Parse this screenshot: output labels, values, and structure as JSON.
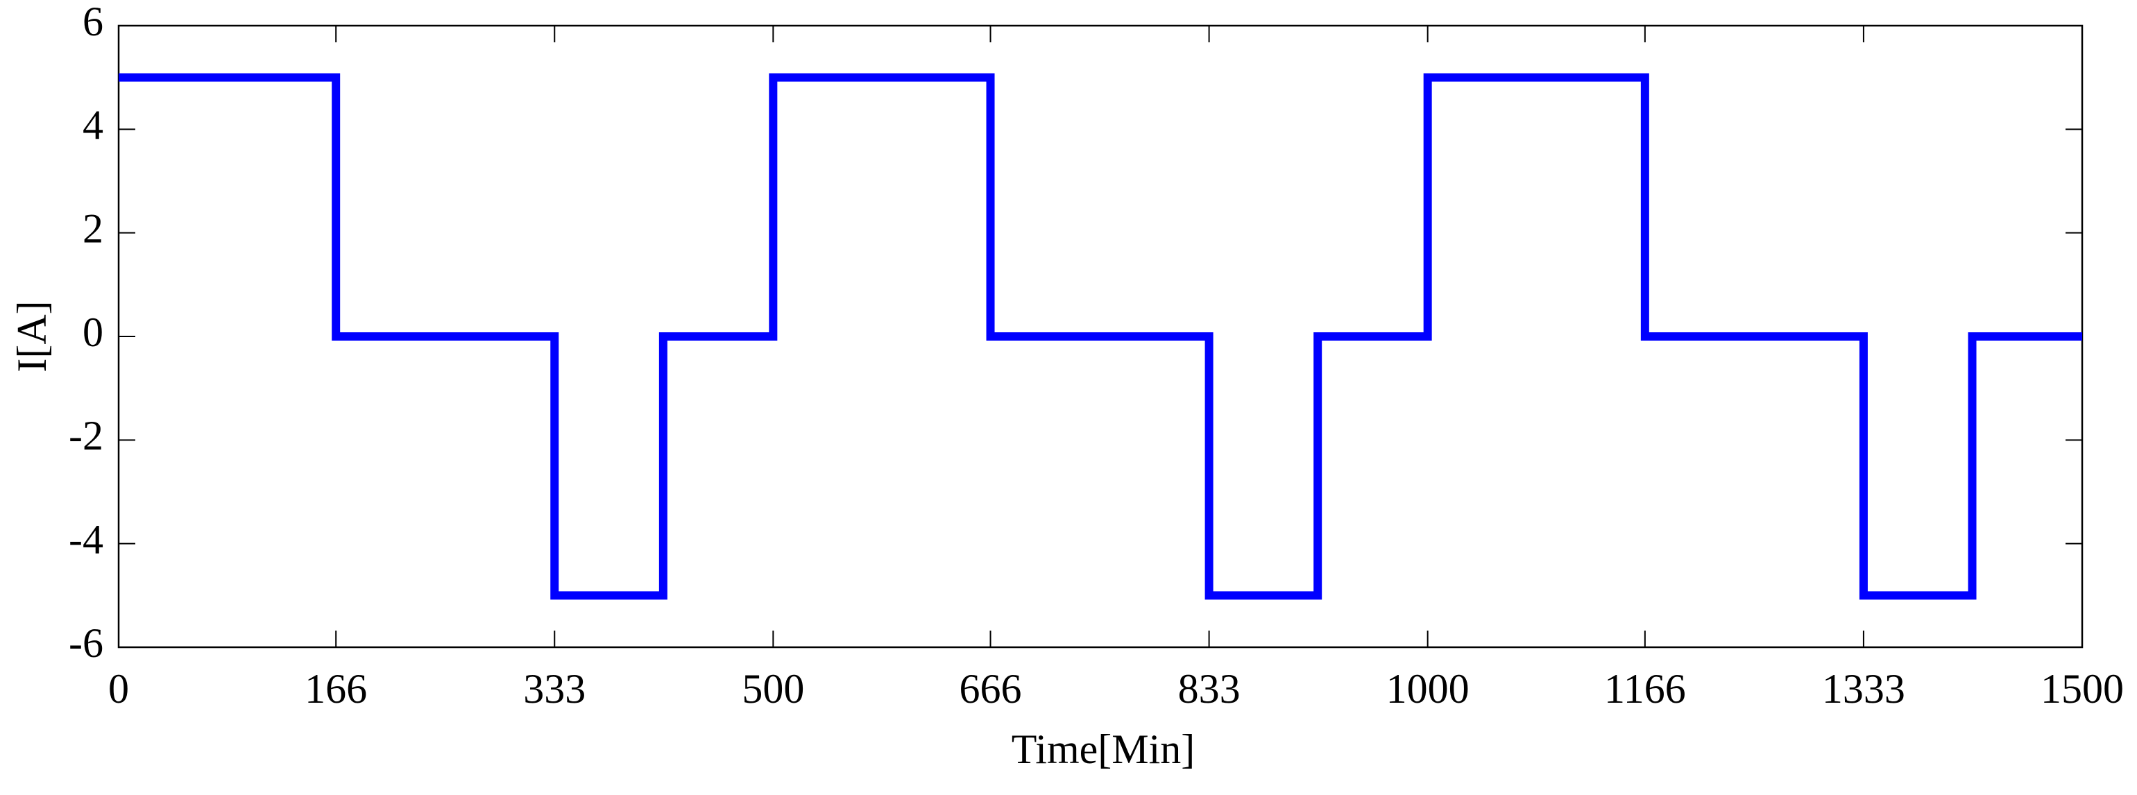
{
  "chart_data": {
    "type": "line",
    "x_label": "Time[Min]",
    "y_label": "I[A]",
    "x": [
      0,
      166,
      166,
      333,
      333,
      416,
      416,
      500,
      500,
      666,
      666,
      833,
      833,
      916,
      916,
      1000,
      1000,
      1166,
      1166,
      1333,
      1333,
      1416,
      1416,
      1500
    ],
    "values": [
      5,
      5,
      0,
      0,
      -5,
      -5,
      0,
      0,
      5,
      5,
      0,
      0,
      -5,
      -5,
      0,
      0,
      5,
      5,
      0,
      0,
      -5,
      -5,
      0,
      0
    ],
    "color": "#0000ff",
    "xlim": [
      0,
      1500
    ],
    "xticks": [
      0,
      166,
      333,
      500,
      666,
      833,
      1000,
      1166,
      1333,
      1500
    ],
    "ylim": [
      -6,
      6
    ],
    "yticks": [
      -6,
      -4,
      -2,
      0,
      2,
      4,
      6
    ],
    "grid": false
  }
}
